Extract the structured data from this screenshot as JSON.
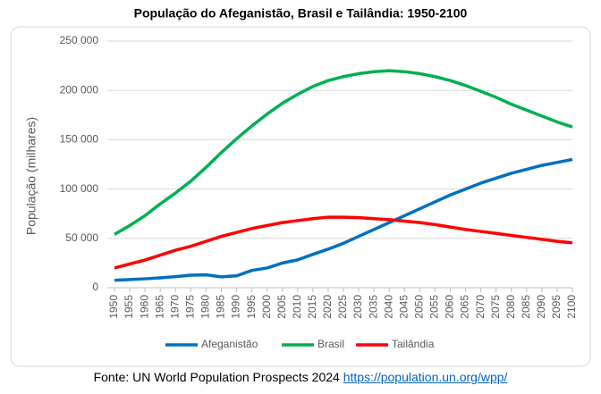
{
  "chart_data": {
    "type": "line",
    "title": "População do Afeganistão, Brasil e Tailândia: 1950-2100",
    "ylabel": "População (milhares)",
    "x": [
      1950,
      1955,
      1960,
      1965,
      1970,
      1975,
      1980,
      1985,
      1990,
      1995,
      2000,
      2005,
      2010,
      2015,
      2020,
      2025,
      2030,
      2035,
      2040,
      2045,
      2050,
      2055,
      2060,
      2065,
      2070,
      2075,
      2080,
      2085,
      2090,
      2095,
      2100
    ],
    "xlim": [
      1950,
      2100
    ],
    "xticks": [
      1950,
      1955,
      1960,
      1965,
      1970,
      1975,
      1980,
      1985,
      1990,
      1995,
      2000,
      2005,
      2010,
      2015,
      2020,
      2025,
      2030,
      2035,
      2040,
      2045,
      2050,
      2055,
      2060,
      2065,
      2070,
      2075,
      2080,
      2085,
      2090,
      2095,
      2100
    ],
    "ylim": [
      0,
      250000
    ],
    "yticks": [
      0,
      {
        "value": 50000,
        "label": "50 000"
      },
      {
        "value": 100000,
        "label": "100 000"
      },
      {
        "value": 150000,
        "label": "150 000"
      },
      {
        "value": 200000,
        "label": "200 000"
      },
      {
        "value": 250000,
        "label": "250 000"
      }
    ],
    "grid": true,
    "legend": "bottom",
    "series": [
      {
        "name": "Afeganistão",
        "color": "#0070c0",
        "values": [
          7500,
          8300,
          9000,
          10000,
          11200,
          12700,
          13000,
          11000,
          12000,
          17500,
          20000,
          25000,
          28200,
          33800,
          39100,
          45000,
          52000,
          59000,
          66000,
          73000,
          80000,
          87000,
          94000,
          100000,
          106000,
          111000,
          116000,
          120000,
          124000,
          127000,
          130000
        ]
      },
      {
        "name": "Brasil",
        "color": "#00b050",
        "values": [
          54000,
          63000,
          73000,
          85000,
          96000,
          108000,
          122000,
          137000,
          151000,
          164000,
          176000,
          187000,
          196000,
          204000,
          210000,
          214000,
          217000,
          219000,
          220000,
          219000,
          217000,
          214000,
          210000,
          205000,
          199000,
          193000,
          186000,
          180000,
          174000,
          168000,
          163000
        ]
      },
      {
        "name": "Tailândia",
        "color": "#ff0000",
        "values": [
          20000,
          24000,
          28000,
          33000,
          38000,
          42000,
          47000,
          52000,
          56000,
          60000,
          63000,
          66000,
          68000,
          70000,
          71500,
          71500,
          71000,
          70000,
          69000,
          67500,
          66000,
          64000,
          61500,
          59000,
          57000,
          55000,
          53000,
          51000,
          49000,
          47000,
          45500
        ]
      }
    ]
  },
  "footer": {
    "text": "Fonte: UN World Population Prospects 2024",
    "link": "https://population.un.org/wpp/"
  }
}
